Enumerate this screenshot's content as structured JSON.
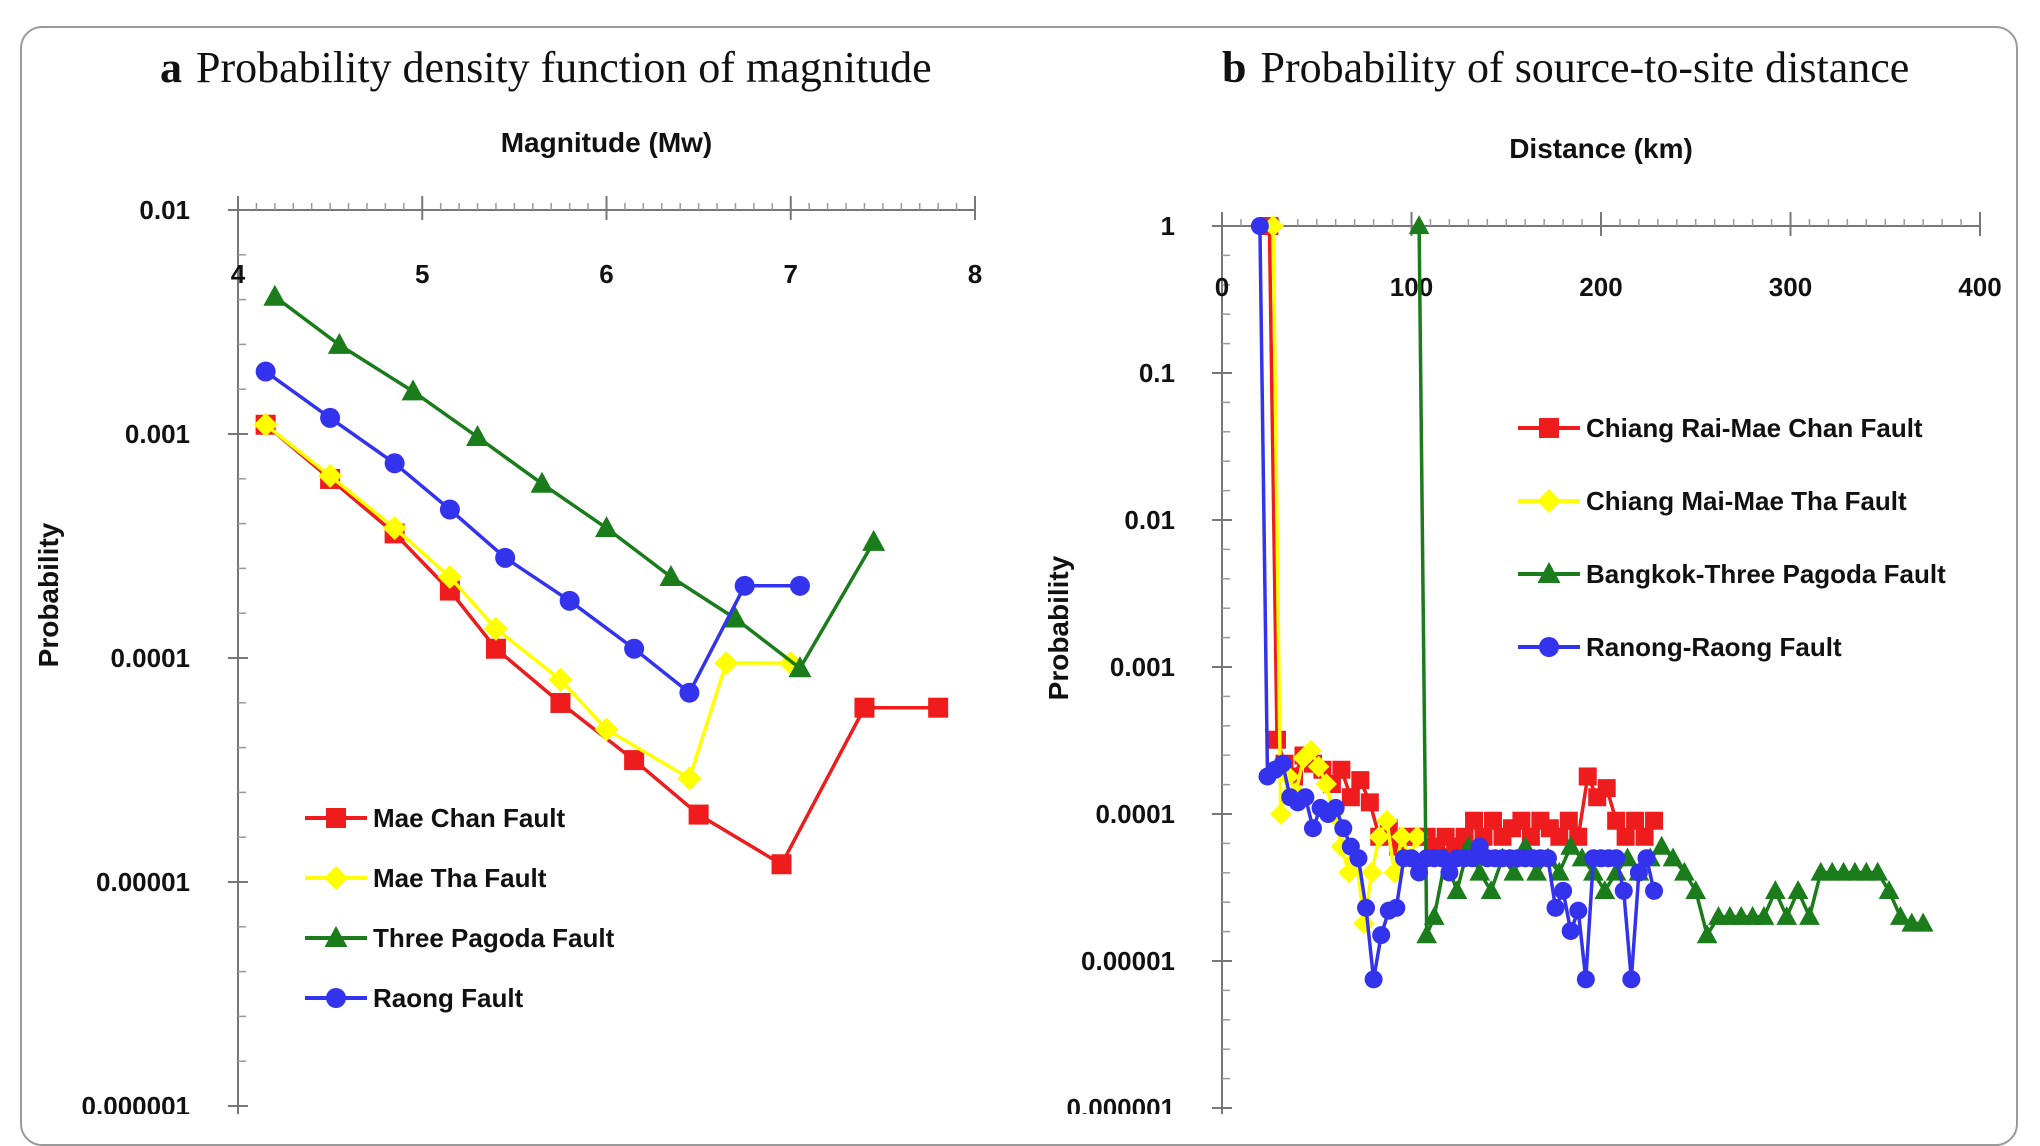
{
  "figure": {
    "panel_a": {
      "letter": "a",
      "title": "Probability density function of magnitude"
    },
    "panel_b": {
      "letter": "b",
      "title": "Probability of source-to-site distance"
    }
  },
  "chart_data": [
    {
      "type": "line",
      "title": "Probability density function of magnitude",
      "xlabel": "Magnitude (Mw)",
      "ylabel": "Probability",
      "xlim": [
        4,
        8
      ],
      "ylim": [
        1e-06,
        0.01
      ],
      "yscale": "log",
      "x_axis_position": "top",
      "x_ticks": [
        "4",
        "5",
        "6",
        "7",
        "8"
      ],
      "y_ticks": [
        "0.01",
        "0.001",
        "0.0001",
        "0.00001",
        "0.000001"
      ],
      "legend_position": "bottom-left",
      "series": [
        {
          "name": "Mae Chan Fault",
          "color": "#ee1c1c",
          "marker": "square",
          "x": [
            4.15,
            4.5,
            4.85,
            5.15,
            5.4,
            5.75,
            6.15,
            6.5,
            6.95,
            7.4,
            7.8
          ],
          "y": [
            0.0011,
            0.00063,
            0.00036,
            0.0002,
            0.00011,
            6.3e-05,
            3.5e-05,
            2e-05,
            1.2e-05,
            6e-05,
            6e-05
          ]
        },
        {
          "name": "Mae Tha Fault",
          "color": "#ffff00",
          "marker": "diamond",
          "x": [
            4.15,
            4.5,
            4.85,
            5.15,
            5.4,
            5.75,
            6.0,
            6.45,
            6.65,
            7.0
          ],
          "y": [
            0.0011,
            0.00065,
            0.00038,
            0.00023,
            0.000135,
            8e-05,
            4.8e-05,
            2.9e-05,
            9.5e-05,
            9.5e-05
          ]
        },
        {
          "name": "Three Pagoda Fault",
          "color": "#1a7c1a",
          "marker": "triangle",
          "x": [
            4.2,
            4.55,
            4.95,
            5.3,
            5.65,
            6.0,
            6.35,
            6.7,
            7.05,
            7.45
          ],
          "y": [
            0.0041,
            0.0025,
            0.00155,
            0.00097,
            0.0006,
            0.00038,
            0.00023,
            0.00015,
            9e-05,
            0.00033
          ]
        },
        {
          "name": "Raong Fault",
          "color": "#3333ee",
          "marker": "circle",
          "x": [
            4.15,
            4.5,
            4.85,
            5.15,
            5.45,
            5.8,
            6.15,
            6.45,
            6.75,
            7.05
          ],
          "y": [
            0.0019,
            0.00118,
            0.00074,
            0.00046,
            0.00028,
            0.00018,
            0.00011,
            7e-05,
            0.00021,
            0.00021
          ]
        }
      ]
    },
    {
      "type": "line",
      "title": "Probability of source-to-site distance",
      "xlabel": "Distance (km)",
      "ylabel": "Probability",
      "xlim": [
        0,
        400
      ],
      "ylim": [
        1e-06,
        1
      ],
      "yscale": "log",
      "x_axis_position": "top",
      "x_ticks": [
        "0",
        "100",
        "200",
        "300",
        "400"
      ],
      "y_ticks": [
        "1",
        "0.1",
        "0.01",
        "0.001",
        "0.0001",
        "0.00001",
        "0.000001"
      ],
      "legend_position": "top-right",
      "series": [
        {
          "name": "Chiang Rai-Mae Chan Fault",
          "color": "#ee1c1c",
          "marker": "square",
          "x": [
            25,
            29,
            33,
            38,
            43,
            48,
            53,
            58,
            63,
            68,
            73,
            78,
            83,
            88,
            93,
            98,
            103,
            108,
            113,
            118,
            123,
            128,
            133,
            138,
            143,
            148,
            153,
            158,
            163,
            168,
            173,
            178,
            183,
            188,
            193,
            198,
            203,
            208,
            213,
            218,
            223,
            228
          ],
          "y": [
            1,
            0.00032,
            0.00022,
            0.00018,
            0.00025,
            0.00022,
            0.0002,
            0.00016,
            0.0002,
            0.00013,
            0.00017,
            0.00012,
            7e-05,
            8e-05,
            6e-05,
            7e-05,
            7e-05,
            7e-05,
            6e-05,
            7e-05,
            6e-05,
            7e-05,
            9e-05,
            7e-05,
            9e-05,
            7e-05,
            8e-05,
            9e-05,
            7e-05,
            9e-05,
            8e-05,
            7e-05,
            9e-05,
            7e-05,
            0.00018,
            0.00013,
            0.00015,
            9e-05,
            7e-05,
            9e-05,
            7e-05,
            9e-05
          ]
        },
        {
          "name": "Chiang Mai-Mae Tha Fault",
          "color": "#ffff00",
          "marker": "diamond",
          "x": [
            27,
            31,
            35,
            39,
            43,
            47,
            51,
            55,
            59,
            63,
            67,
            71,
            75,
            79,
            83,
            87,
            91,
            95,
            99,
            103
          ],
          "y": [
            1,
            0.0001,
            0.00018,
            0.00014,
            0.00024,
            0.00027,
            0.00021,
            0.00016,
            0.0001,
            6e-05,
            4e-05,
            5e-05,
            1.8e-05,
            4e-05,
            7e-05,
            9e-05,
            4e-05,
            7e-05,
            5e-05,
            7e-05
          ]
        },
        {
          "name": "Bangkok-Three Pagoda Fault",
          "color": "#1a7c1a",
          "marker": "triangle",
          "x": [
            104,
            108,
            112,
            118,
            124,
            130,
            136,
            142,
            148,
            154,
            160,
            166,
            172,
            178,
            184,
            190,
            196,
            202,
            208,
            214,
            220,
            226,
            232,
            238,
            244,
            250,
            256,
            262,
            268,
            274,
            280,
            286,
            292,
            298,
            304,
            310,
            316,
            322,
            328,
            334,
            340,
            346,
            352,
            358,
            364,
            370
          ],
          "y": [
            1,
            1.5e-05,
            2e-05,
            5e-05,
            3e-05,
            6e-05,
            4e-05,
            3e-05,
            5e-05,
            4e-05,
            6e-05,
            4e-05,
            5e-05,
            4e-05,
            6e-05,
            5e-05,
            4e-05,
            3e-05,
            4e-05,
            5e-05,
            4e-05,
            5e-05,
            6e-05,
            5e-05,
            4e-05,
            3e-05,
            1.5e-05,
            2e-05,
            2e-05,
            2e-05,
            2e-05,
            2e-05,
            3e-05,
            2e-05,
            3e-05,
            2e-05,
            4e-05,
            4e-05,
            4e-05,
            4e-05,
            4e-05,
            4e-05,
            3e-05,
            2e-05,
            1.8e-05,
            1.8e-05
          ]
        },
        {
          "name": "Ranong-Raong Fault",
          "color": "#3333ee",
          "marker": "circle",
          "x": [
            20,
            24,
            28,
            32,
            36,
            40,
            44,
            48,
            52,
            56,
            60,
            64,
            68,
            72,
            76,
            80,
            84,
            88,
            92,
            96,
            100,
            104,
            108,
            112,
            116,
            120,
            124,
            128,
            132,
            136,
            140,
            144,
            148,
            152,
            156,
            160,
            164,
            168,
            172,
            176,
            180,
            184,
            188,
            192,
            196,
            200,
            204,
            208,
            212,
            216,
            220,
            224,
            228
          ],
          "y": [
            1,
            0.00018,
            0.0002,
            0.00022,
            0.00013,
            0.00012,
            0.00013,
            8e-05,
            0.00011,
            0.0001,
            0.00011,
            8e-05,
            6e-05,
            5e-05,
            2.3e-05,
            7.5e-06,
            1.5e-05,
            2.2e-05,
            2.3e-05,
            5e-05,
            5e-05,
            4e-05,
            5e-05,
            5e-05,
            5e-05,
            4e-05,
            5e-05,
            5e-05,
            5e-05,
            6e-05,
            5e-05,
            5e-05,
            5e-05,
            5e-05,
            5e-05,
            5e-05,
            5e-05,
            5e-05,
            5e-05,
            2.3e-05,
            3e-05,
            1.6e-05,
            2.2e-05,
            7.5e-06,
            5e-05,
            5e-05,
            5e-05,
            5e-05,
            3e-05,
            7.5e-06,
            4e-05,
            5e-05,
            3e-05
          ]
        }
      ]
    }
  ]
}
